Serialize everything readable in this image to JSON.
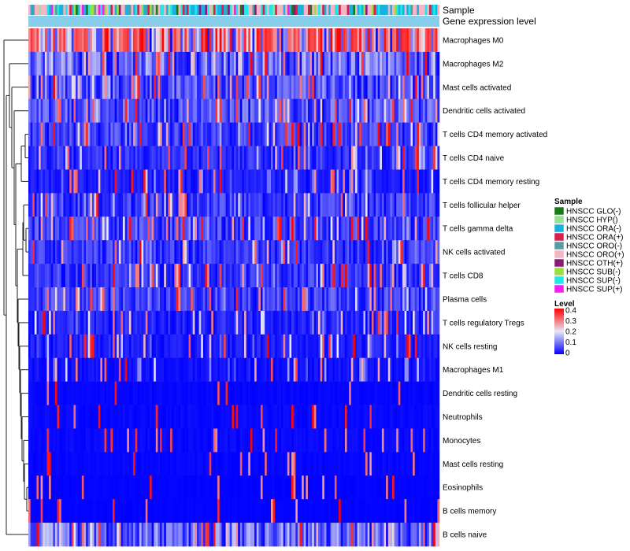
{
  "chart_data": {
    "type": "heatmap",
    "title": "",
    "annotation_track_labels": [
      "Sample",
      "Gene expression level"
    ],
    "row_labels": [
      "Macrophages M0",
      "Macrophages M2",
      "Mast cells activated",
      "Dendritic cells activated",
      "T cells CD4 memory activated",
      "T cells CD4 naive",
      "T cells CD4 memory resting",
      "T cells follicular helper",
      "T cells gamma delta",
      "NK cells activated",
      "T cells CD8",
      "Plasma cells",
      "T cells regulatory  Tregs",
      "NK cells resting",
      "Macrophages M1",
      "Dendritic cells resting",
      "Neutrophils",
      "Monocytes",
      "Mast cells resting",
      "Eosinophils",
      "B cells memory",
      "B cells naive"
    ],
    "approx_row_mean_level": [
      0.3,
      0.12,
      0.09,
      0.09,
      0.07,
      0.05,
      0.03,
      0.07,
      0.07,
      0.06,
      0.06,
      0.07,
      0.04,
      0.03,
      0.02,
      0.01,
      0.015,
      0.015,
      0.01,
      0.005,
      0.005,
      0.12
    ],
    "n_samples": 200,
    "sample_legend": {
      "title": "Sample",
      "entries": [
        {
          "label": "HNSCC GLO(-)",
          "color": "#1a7a1a"
        },
        {
          "label": "HNSCC HYP()",
          "color": "#98e09a"
        },
        {
          "label": "HNSCC ORA(-)",
          "color": "#1ab0e0"
        },
        {
          "label": "HNSCC ORA(+)",
          "color": "#d8204a"
        },
        {
          "label": "HNSCC ORO(-)",
          "color": "#5a9aa0"
        },
        {
          "label": "HNSCC ORO(+)",
          "color": "#f4b6c2"
        },
        {
          "label": "HNSCC OTH(+)",
          "color": "#8a1a7a"
        },
        {
          "label": "HNSCC SUB(-)",
          "color": "#9ae040"
        },
        {
          "label": "HNSCC SUP(-)",
          "color": "#20e8e8"
        },
        {
          "label": "HNSCC SUP(+)",
          "color": "#f020f0"
        }
      ]
    },
    "color_scale": {
      "title": "Level",
      "range": [
        0,
        0.4
      ],
      "ticks": [
        "0.4",
        "0.3",
        "0.2",
        "0.1",
        "0"
      ],
      "colors": [
        "#0000ff",
        "#e8e8f4",
        "#ff0000"
      ]
    },
    "expression_track_color": "#87ceeb"
  }
}
